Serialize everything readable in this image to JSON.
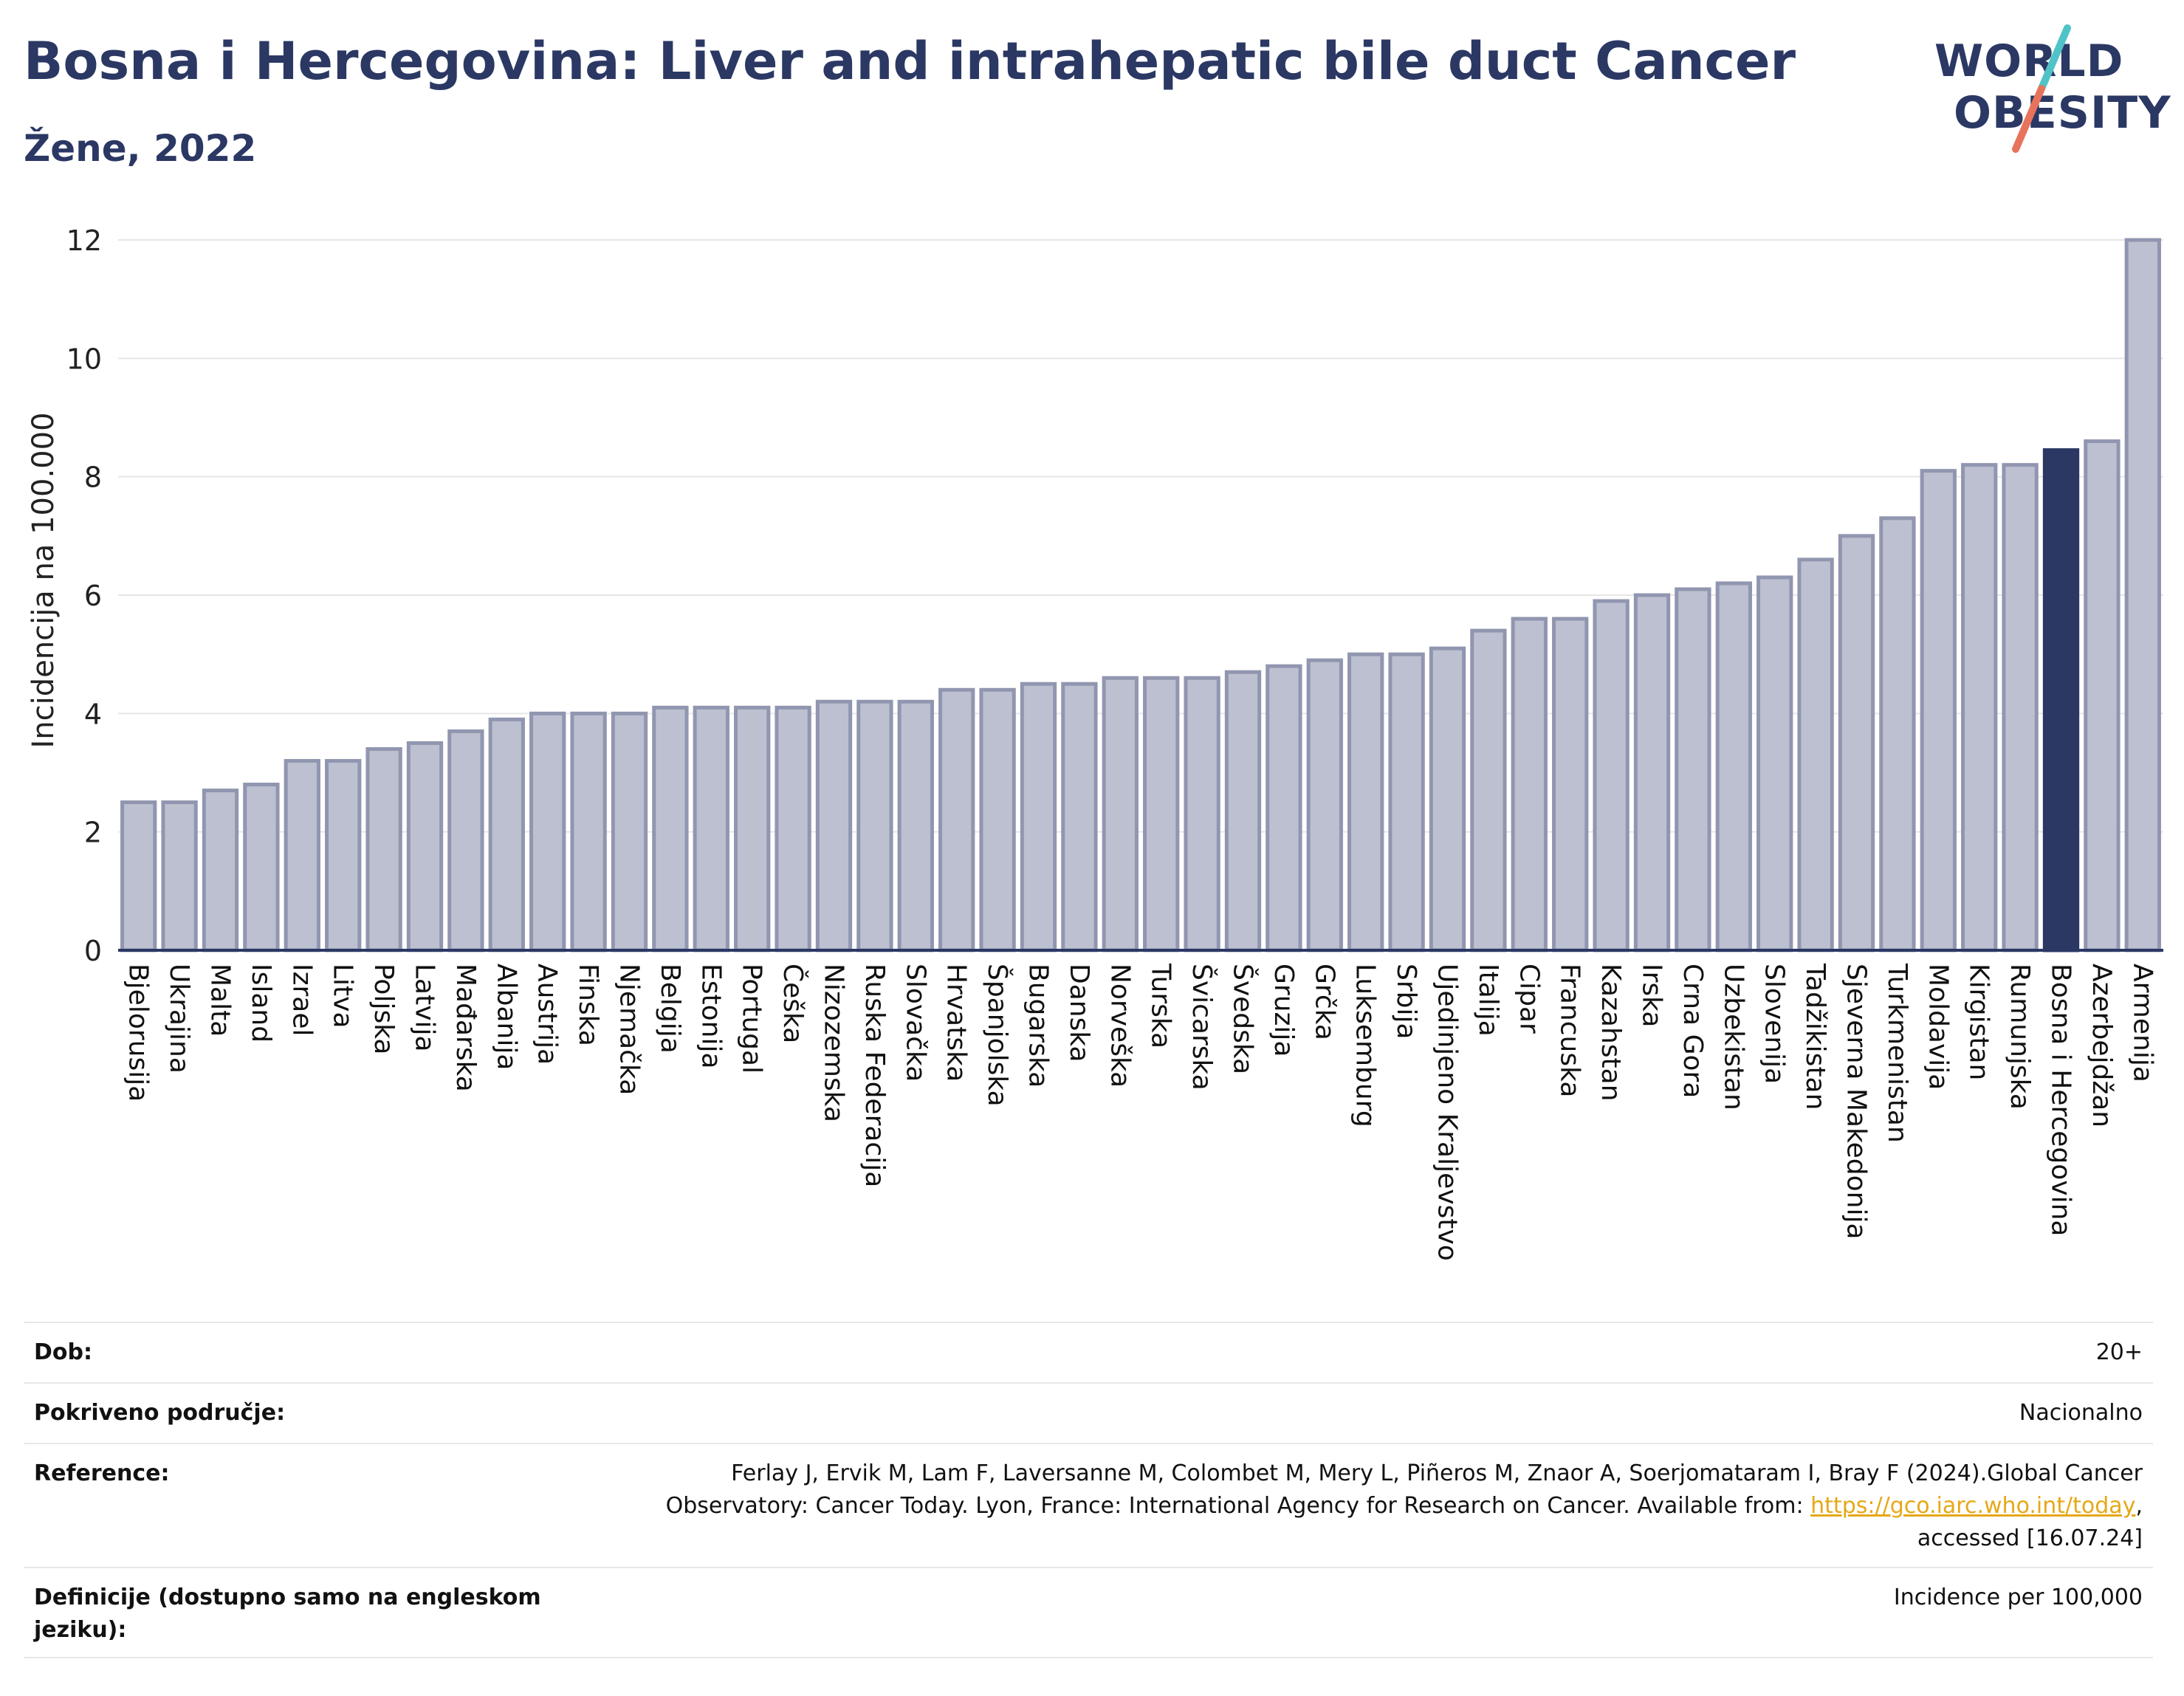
{
  "header": {
    "title": "Bosna i Hercegovina: Liver and intrahepatic bile duct Cancer",
    "subtitle": "Žene, 2022"
  },
  "logo": {
    "line1": "WORLD",
    "line2": "OBESITY",
    "accent_colors": [
      "#4fc3c7",
      "#e8735c"
    ]
  },
  "colors": {
    "bar": "#bcc0d0",
    "bar_stroke": "#9196b0",
    "highlight": "#2b3864",
    "axis": "#2b3864",
    "grid": "#e6e6e6"
  },
  "chart_data": {
    "type": "bar",
    "ylabel": "Incidencija na 100.000",
    "ylim": [
      0,
      12
    ],
    "yticks": [
      0,
      2,
      4,
      6,
      8,
      10,
      12
    ],
    "highlight": "Bosna i Hercegovina",
    "categories": [
      "Bjelorusija",
      "Ukrajina",
      "Malta",
      "Island",
      "Izrael",
      "Litva",
      "Poljska",
      "Latvija",
      "Mađarska",
      "Albanija",
      "Austrija",
      "Finska",
      "Njemačka",
      "Belgija",
      "Estonija",
      "Portugal",
      "Češka",
      "Nizozemska",
      "Ruska Federacija",
      "Slovačka",
      "Hrvatska",
      "Španjolska",
      "Bugarska",
      "Danska",
      "Norveška",
      "Turska",
      "Švicarska",
      "Švedska",
      "Gruzija",
      "Grčka",
      "Luksemburg",
      "Srbija",
      "Ujedinjeno Kraljevstvo",
      "Italija",
      "Cipar",
      "Francuska",
      "Kazahstan",
      "Irska",
      "Crna Gora",
      "Uzbekistan",
      "Slovenija",
      "Tadžikistan",
      "Sjeverna Makedonija",
      "Turkmenistan",
      "Moldavija",
      "Kirgistan",
      "Rumunjska",
      "Bosna i Hercegovina",
      "Azerbejdžan",
      "Armenija"
    ],
    "values": [
      2.5,
      2.5,
      2.7,
      2.8,
      3.2,
      3.2,
      3.4,
      3.5,
      3.7,
      3.9,
      4.0,
      4.0,
      4.0,
      4.1,
      4.1,
      4.1,
      4.1,
      4.2,
      4.2,
      4.2,
      4.4,
      4.4,
      4.5,
      4.5,
      4.6,
      4.6,
      4.6,
      4.7,
      4.8,
      4.9,
      5.0,
      5.0,
      5.1,
      5.4,
      5.6,
      5.6,
      5.9,
      6.0,
      6.1,
      6.2,
      6.3,
      6.6,
      7.0,
      7.3,
      8.1,
      8.2,
      8.2,
      8.45,
      8.6,
      12.0
    ]
  },
  "info": {
    "age_label": "Dob:",
    "age_value": "20+",
    "coverage_label": "Pokriveno područje:",
    "coverage_value": "Nacionalno",
    "reference_label": "Reference:",
    "reference_line1": "Ferlay J, Ervik M, Lam F, Laversanne M, Colombet M, Mery L, Piñeros M, Znaor A, Soerjomataram I, Bray F (2024).Global Cancer",
    "reference_line2_pre": "Observatory: Cancer Today. Lyon, France: International Agency for Research on Cancer. Available from: ",
    "reference_link": "https://gco.iarc.who.int/today",
    "reference_line2_post": ",",
    "reference_line3": "accessed [16.07.24]",
    "definitions_label": "Definicije (dostupno samo na engleskom jeziku):",
    "definitions_value": "Incidence per 100,000"
  }
}
